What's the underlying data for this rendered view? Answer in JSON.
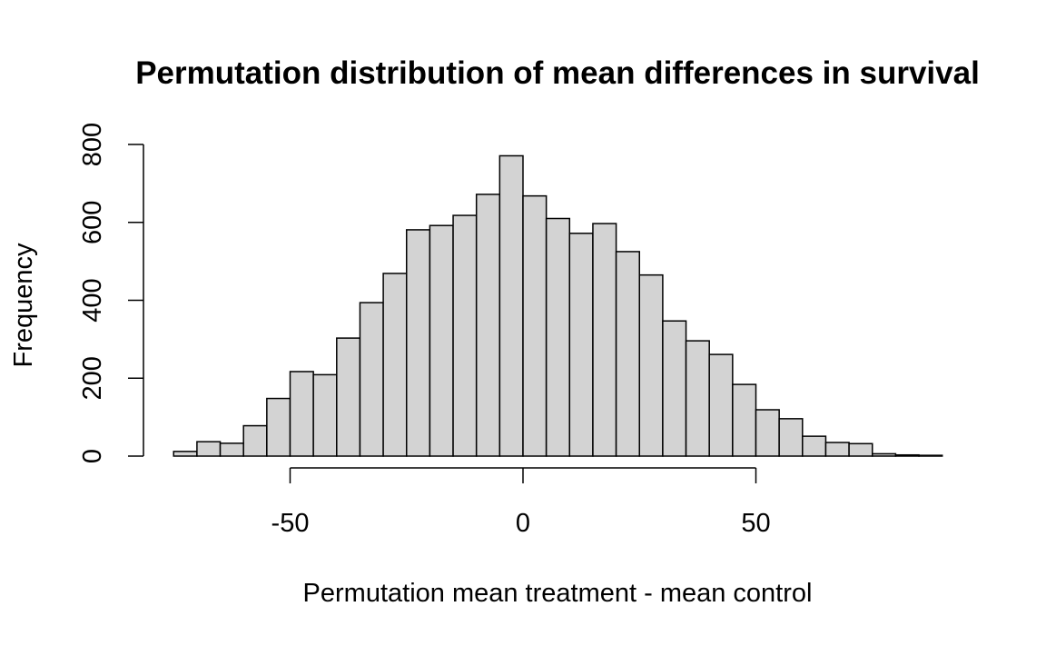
{
  "chart_data": {
    "type": "bar",
    "title": "Permutation distribution of mean differences in survival",
    "xlabel": "Permutation mean treatment - mean control",
    "ylabel": "Frequency",
    "bin_width": 5,
    "bin_start": -75,
    "bins": [
      {
        "x0": -75,
        "x1": -70,
        "count": 12
      },
      {
        "x0": -70,
        "x1": -65,
        "count": 37
      },
      {
        "x0": -65,
        "x1": -60,
        "count": 33
      },
      {
        "x0": -60,
        "x1": -55,
        "count": 78
      },
      {
        "x0": -55,
        "x1": -50,
        "count": 148
      },
      {
        "x0": -50,
        "x1": -45,
        "count": 217
      },
      {
        "x0": -45,
        "x1": -40,
        "count": 209
      },
      {
        "x0": -40,
        "x1": -35,
        "count": 303
      },
      {
        "x0": -35,
        "x1": -30,
        "count": 394
      },
      {
        "x0": -30,
        "x1": -25,
        "count": 469
      },
      {
        "x0": -25,
        "x1": -20,
        "count": 581
      },
      {
        "x0": -20,
        "x1": -15,
        "count": 592
      },
      {
        "x0": -15,
        "x1": -10,
        "count": 618
      },
      {
        "x0": -10,
        "x1": -5,
        "count": 672
      },
      {
        "x0": -5,
        "x1": 0,
        "count": 771
      },
      {
        "x0": 0,
        "x1": 5,
        "count": 668
      },
      {
        "x0": 5,
        "x1": 10,
        "count": 610
      },
      {
        "x0": 10,
        "x1": 15,
        "count": 572
      },
      {
        "x0": 15,
        "x1": 20,
        "count": 597
      },
      {
        "x0": 20,
        "x1": 25,
        "count": 525
      },
      {
        "x0": 25,
        "x1": 30,
        "count": 465
      },
      {
        "x0": 30,
        "x1": 35,
        "count": 347
      },
      {
        "x0": 35,
        "x1": 40,
        "count": 296
      },
      {
        "x0": 40,
        "x1": 45,
        "count": 261
      },
      {
        "x0": 45,
        "x1": 50,
        "count": 184
      },
      {
        "x0": 50,
        "x1": 55,
        "count": 119
      },
      {
        "x0": 55,
        "x1": 60,
        "count": 96
      },
      {
        "x0": 60,
        "x1": 65,
        "count": 51
      },
      {
        "x0": 65,
        "x1": 70,
        "count": 35
      },
      {
        "x0": 70,
        "x1": 75,
        "count": 32
      },
      {
        "x0": 75,
        "x1": 80,
        "count": 6
      },
      {
        "x0": 80,
        "x1": 85,
        "count": 3
      },
      {
        "x0": 85,
        "x1": 90,
        "count": 2
      }
    ],
    "xticks": [
      -50,
      0,
      50
    ],
    "xtick_labels": [
      "-50",
      "0",
      "50"
    ],
    "yticks": [
      0,
      200,
      400,
      600,
      800
    ],
    "ytick_labels": [
      "0",
      "200",
      "400",
      "600",
      "800"
    ],
    "xlim": [
      -75,
      90
    ],
    "ylim": [
      0,
      800
    ],
    "bar_color": "#d3d3d3",
    "grid": false
  }
}
